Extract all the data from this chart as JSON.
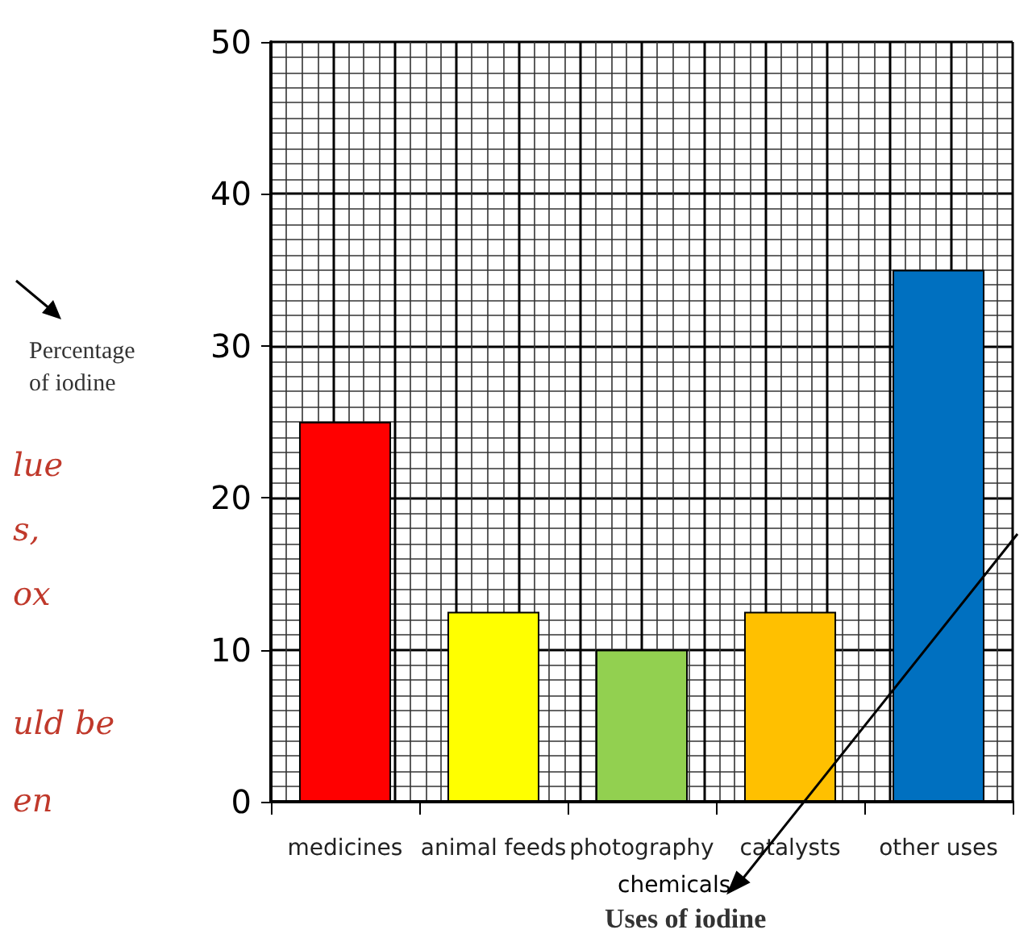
{
  "chart_data": {
    "type": "bar",
    "xlabel": "Uses of iodine",
    "ylabel": "Percentage\nof iodine",
    "categories": [
      "medicines",
      "animal feeds",
      "photography",
      "catalysts",
      "other uses"
    ],
    "values": [
      25,
      12.5,
      10,
      12.5,
      35
    ],
    "colors": [
      "#ff0000",
      "#ffff00",
      "#92d050",
      "#ffc000",
      "#0070c0"
    ],
    "ylim": [
      0,
      50
    ],
    "yticks": [
      0,
      10,
      20,
      30,
      40,
      50
    ],
    "grid": true,
    "annotations": [
      "chemicals",
      "lue",
      "s,",
      "ox",
      "uld be",
      "en"
    ]
  }
}
